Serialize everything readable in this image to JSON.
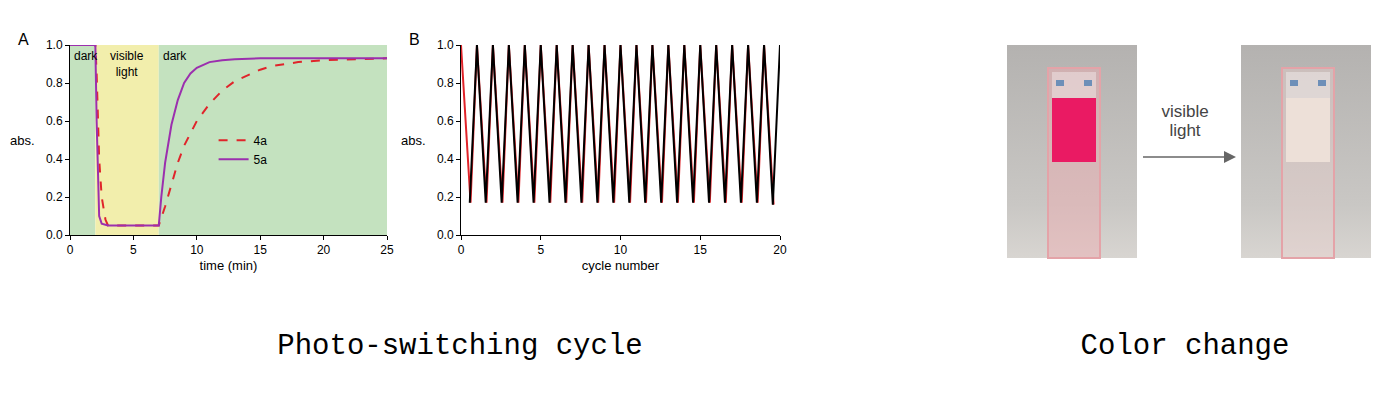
{
  "chart_data": [
    {
      "type": "line",
      "panel": "A",
      "x_label": "time (min)",
      "y_label": "abs.",
      "xlim": [
        0,
        25
      ],
      "xticks": [
        0,
        5,
        10,
        15,
        20,
        25
      ],
      "ylim": [
        0,
        1
      ],
      "yticks": [
        {
          "value": 0,
          "label": "0.0"
        },
        0.2,
        0.4,
        0.6,
        0.8,
        {
          "value": 1,
          "label": "1.0"
        }
      ],
      "grid": false,
      "legend": "inside",
      "regions": [
        {
          "label": "dark",
          "x0": 0,
          "x1": 2,
          "color": "#c4e2bf"
        },
        {
          "label": "visible light",
          "x0": 2,
          "x1": 7,
          "color": "#f2eeac"
        },
        {
          "label": "dark",
          "x0": 7,
          "x1": 25,
          "color": "#c4e2bf"
        }
      ],
      "series": [
        {
          "name": "4a",
          "color": "#e0242a",
          "line_style": "dashed",
          "x": [
            0,
            1,
            2,
            2.1,
            2.2,
            2.3,
            2.5,
            2.8,
            3,
            4,
            5,
            6,
            7,
            7.5,
            8,
            8.5,
            9,
            10,
            11,
            12,
            13,
            14,
            15,
            16,
            18,
            20,
            22,
            25
          ],
          "values": [
            1,
            1,
            1,
            0.85,
            0.62,
            0.4,
            0.2,
            0.08,
            0.05,
            0.05,
            0.05,
            0.05,
            0.05,
            0.15,
            0.27,
            0.38,
            0.47,
            0.6,
            0.69,
            0.76,
            0.81,
            0.84,
            0.87,
            0.89,
            0.91,
            0.92,
            0.925,
            0.93
          ]
        },
        {
          "name": "5a",
          "color": "#9b2fae",
          "line_style": "solid",
          "x": [
            0,
            1,
            2,
            2.1,
            2.2,
            2.3,
            2.5,
            3,
            4,
            5,
            6,
            7,
            7.2,
            7.5,
            8,
            8.5,
            9,
            9.5,
            10,
            11,
            12,
            13,
            15,
            18,
            21,
            25
          ],
          "values": [
            1,
            1,
            1,
            0.6,
            0.25,
            0.1,
            0.06,
            0.05,
            0.05,
            0.05,
            0.05,
            0.05,
            0.2,
            0.38,
            0.58,
            0.71,
            0.8,
            0.85,
            0.88,
            0.91,
            0.92,
            0.925,
            0.93,
            0.93,
            0.93,
            0.93
          ]
        }
      ]
    },
    {
      "type": "line",
      "panel": "B",
      "x_label": "cycle number",
      "y_label": "abs.",
      "xlim": [
        0,
        20
      ],
      "xticks": [
        0,
        5,
        10,
        15,
        20
      ],
      "ylim": [
        0,
        1
      ],
      "yticks": [
        {
          "value": 0,
          "label": "0.0"
        },
        0.2,
        0.4,
        0.6,
        0.8,
        {
          "value": 1,
          "label": "1.0"
        }
      ],
      "grid": false,
      "series": [
        {
          "color": "#e0242a",
          "line_style": "solid",
          "x": [
            0,
            0.6,
            1,
            1.6,
            2,
            2.6,
            3,
            3.6,
            4,
            4.6,
            5,
            5.6,
            6,
            6.6,
            7,
            7.6,
            8,
            8.6,
            9,
            9.6,
            10,
            10.6,
            11,
            11.6,
            12,
            12.6,
            13,
            13.6,
            14,
            14.6,
            15,
            15.6,
            16,
            16.6,
            17,
            17.6,
            18,
            18.6,
            19,
            19.6
          ],
          "values": [
            1,
            0.17,
            1,
            0.17,
            1,
            0.17,
            1,
            0.17,
            1,
            0.17,
            1,
            0.17,
            1,
            0.17,
            1,
            0.17,
            1,
            0.17,
            1,
            0.17,
            1,
            0.17,
            1,
            0.17,
            1,
            0.17,
            1,
            0.17,
            1,
            0.17,
            1,
            0.17,
            1,
            0.17,
            1,
            0.17,
            1,
            0.17,
            1,
            0.16
          ]
        },
        {
          "color": "#000000",
          "line_style": "solid",
          "x": [
            0.55,
            1,
            1.55,
            2,
            2.55,
            3,
            3.55,
            4,
            4.55,
            5,
            5.55,
            6,
            6.55,
            7,
            7.55,
            8,
            8.55,
            9,
            9.55,
            10,
            10.55,
            11,
            11.55,
            12,
            12.55,
            13,
            13.55,
            14,
            14.55,
            15,
            15.55,
            16,
            16.55,
            17,
            17.55,
            18,
            18.55,
            19,
            19.55,
            20
          ],
          "values": [
            0.17,
            1,
            0.17,
            1,
            0.17,
            1,
            0.17,
            1,
            0.17,
            1,
            0.17,
            1,
            0.17,
            1,
            0.17,
            1,
            0.17,
            1,
            0.17,
            1,
            0.17,
            1,
            0.17,
            1,
            0.17,
            1,
            0.17,
            1,
            0.17,
            1,
            0.17,
            1,
            0.17,
            1,
            0.17,
            1,
            0.17,
            1,
            0.16,
            1
          ]
        }
      ]
    }
  ],
  "photo": {
    "arrow_label": "visible light"
  },
  "captions": [
    "Photo-switching cycle",
    "Color change"
  ]
}
